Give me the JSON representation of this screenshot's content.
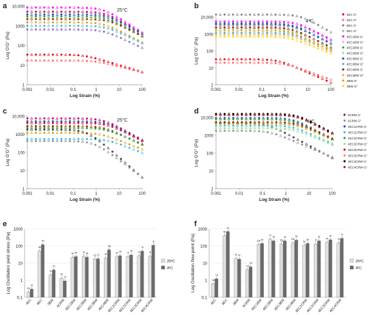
{
  "chart_data": [
    {
      "panel": "a",
      "type": "scatter",
      "annotation": "25°C",
      "xlabel": "Log Strain (%)",
      "ylabel": "Log G'G'' (Pa)",
      "xscale": "log",
      "yscale": "log",
      "xlim": [
        0.001,
        100
      ],
      "ylim": [
        1,
        10000
      ],
      "x_ticks": [
        "0.001",
        "0.01",
        "0.1",
        "1",
        "10",
        "100"
      ],
      "y_ticks": [
        "1",
        "10",
        "100",
        "1000",
        "10,000"
      ],
      "legend": "none",
      "series": [
        {
          "color": "#ff00ff",
          "plateau": 8500,
          "yield": 2.0,
          "slope": 0.75
        },
        {
          "color": "#cc0066",
          "plateau": 5200,
          "yield": 2.5,
          "slope": 0.7
        },
        {
          "color": "#1f4fbf",
          "plateau": 3800,
          "yield": 3.0,
          "slope": 0.65
        },
        {
          "color": "#2ca02c",
          "plateau": 3000,
          "yield": 3.0,
          "slope": 0.65
        },
        {
          "color": "#8c2d04",
          "plateau": 2200,
          "yield": 3.5,
          "slope": 0.6
        },
        {
          "color": "#d4a017",
          "plateau": 1500,
          "yield": 2.0,
          "slope": 0.6
        },
        {
          "color": "#3fbcd6",
          "plateau": 1000,
          "yield": 2.5,
          "slope": 0.55
        },
        {
          "color": "#9467bd",
          "plateau": 650,
          "yield": 2.0,
          "slope": 0.55
        },
        {
          "color": "#e2001a",
          "plateau": 34,
          "yield": 0.3,
          "slope": 0.35
        },
        {
          "color": "#ff6666",
          "plateau": 17,
          "yield": 1.0,
          "slope": 0.3
        }
      ]
    },
    {
      "panel": "b",
      "type": "scatter",
      "annotation": "4°C",
      "xlabel": "Log Strain (%)",
      "ylabel": "Log G'G'' (Pa)",
      "xscale": "log",
      "yscale": "log",
      "xlim": [
        0.001,
        100
      ],
      "ylim": [
        1,
        10000
      ],
      "x_ticks": [
        "0.001",
        "0.01",
        "0.1",
        "1",
        "10",
        "100"
      ],
      "y_ticks": [
        "1",
        "10",
        "100",
        "1000",
        "10,000"
      ],
      "legend": "right",
      "series": [
        {
          "name": "4EC G'",
          "color": "#e2001a",
          "plateau": 32,
          "yield": 0.5,
          "slope": 0.6
        },
        {
          "name": "4EC G''",
          "color": "#ff6666",
          "plateau": 20,
          "yield": 1.0,
          "slope": 0.5
        },
        {
          "name": "8EC G'",
          "color": "#808080",
          "plateau": 14000,
          "yield": 5.0,
          "slope": 0.8
        },
        {
          "name": "8EC G''",
          "color": "#b0b0b0",
          "plateau": 3500,
          "yield": 5.0,
          "slope": 0.7
        },
        {
          "name": "4EC1BW G'",
          "color": "#ff00ff",
          "plateau": 5500,
          "yield": 3.0,
          "slope": 0.7
        },
        {
          "name": "4EC1BW G''",
          "color": "#ff99ff",
          "plateau": 2800,
          "yield": 3.0,
          "slope": 0.6
        },
        {
          "name": "4EC2BW G'",
          "color": "#2ca02c",
          "plateau": 3600,
          "yield": 2.5,
          "slope": 0.7
        },
        {
          "name": "4EC2BW G''",
          "color": "#98df8a",
          "plateau": 1700,
          "yield": 2.5,
          "slope": 0.6
        },
        {
          "name": "4EC3BW G'",
          "color": "#1f4fbf",
          "plateau": 4200,
          "yield": 2.0,
          "slope": 0.7
        },
        {
          "name": "4EC3BW G''",
          "color": "#3fbcd6",
          "plateau": 1200,
          "yield": 2.0,
          "slope": 0.6
        },
        {
          "name": "4EC4BW G'",
          "color": "#8c2d04",
          "plateau": 2400,
          "yield": 2.0,
          "slope": 0.7
        },
        {
          "name": "4EC4BW G''",
          "color": "#f4a460",
          "plateau": 950,
          "yield": 2.0,
          "slope": 0.6
        },
        {
          "name": "3BW G'",
          "color": "#d4a017",
          "plateau": 1700,
          "yield": 1.5,
          "slope": 0.65
        },
        {
          "name": "3BW G''",
          "color": "#ffd700",
          "plateau": 700,
          "yield": 1.5,
          "slope": 0.55
        }
      ]
    },
    {
      "panel": "c",
      "type": "scatter",
      "annotation": "25°C",
      "xlabel": "Log Strain (%)",
      "ylabel": "Log G'G'' (Pa)",
      "xscale": "log",
      "yscale": "log",
      "xlim": [
        0.001,
        100
      ],
      "ylim": [
        1,
        10000
      ],
      "x_ticks": [
        "0.001",
        "0.01",
        "0.1",
        "1",
        "10",
        "100"
      ],
      "y_ticks": [
        "1",
        "10",
        "100",
        "1000",
        "10,000"
      ],
      "legend": "none",
      "series": [
        {
          "color": "#cc0066",
          "plateau": 7500,
          "yield": 2.0,
          "slope": 0.7
        },
        {
          "color": "#1f4fbf",
          "plateau": 5200,
          "yield": 3.0,
          "slope": 0.7
        },
        {
          "color": "#e2001a",
          "plateau": 4200,
          "yield": 3.0,
          "slope": 0.65
        },
        {
          "color": "#8c2d04",
          "plateau": 2800,
          "yield": 2.0,
          "slope": 0.6
        },
        {
          "color": "#2ca02c",
          "plateau": 2200,
          "yield": 2.5,
          "slope": 0.55
        },
        {
          "color": "#d4a017",
          "plateau": 1200,
          "yield": 1.5,
          "slope": 0.5
        },
        {
          "color": "#3fbcd6",
          "plateau": 550,
          "yield": 3.0,
          "slope": 0.5
        },
        {
          "color": "#404040",
          "plateau": 1800,
          "yield": 0.4,
          "slope": 1.1
        },
        {
          "color": "#909090",
          "plateau": 420,
          "yield": 0.8,
          "slope": 0.95
        }
      ]
    },
    {
      "panel": "d",
      "type": "scatter",
      "annotation": "4°C",
      "xlabel": "Log Strain (%)",
      "ylabel": "Log G'G'' (Pa)",
      "xscale": "log",
      "yscale": "log",
      "xlim": [
        0.001,
        100
      ],
      "ylim": [
        1,
        10000
      ],
      "x_ticks": [
        "0.001",
        "0.01",
        "0.1",
        "1",
        "10",
        "100"
      ],
      "y_ticks": [
        "1",
        "10",
        "100",
        "1000",
        "10,000"
      ],
      "legend": "right",
      "series": [
        {
          "name": "6CRW G'",
          "color": "#404040",
          "plateau": 5000,
          "yield": 0.15,
          "slope": 0.7
        },
        {
          "name": "6CRW G''",
          "color": "#909090",
          "plateau": 1800,
          "yield": 0.2,
          "slope": 0.55
        },
        {
          "name": "4EC1CRW G'",
          "color": "#1f4fbf",
          "plateau": 9500,
          "yield": 2.0,
          "slope": 0.7
        },
        {
          "name": "4EC1CRW G''",
          "color": "#3fbcd6",
          "plateau": 3500,
          "yield": 2.0,
          "slope": 0.6
        },
        {
          "name": "4EC2CRW G'",
          "color": "#2ca02c",
          "plateau": 8000,
          "yield": 2.0,
          "slope": 0.65
        },
        {
          "name": "4EC2CRW G''",
          "color": "#98df8a",
          "plateau": 2500,
          "yield": 2.0,
          "slope": 0.55
        },
        {
          "name": "4EC3CRW G'",
          "color": "#e2001a",
          "plateau": 14000,
          "yield": 3.0,
          "slope": 0.7
        },
        {
          "name": "4EC3CRW G''",
          "color": "#d4a017",
          "plateau": 4500,
          "yield": 3.0,
          "slope": 0.6
        },
        {
          "name": "4EC4CRW G'",
          "color": "#000000",
          "plateau": 16000,
          "yield": 3.0,
          "slope": 0.7
        },
        {
          "name": "4EC4CRW G''",
          "color": "#8c2d04",
          "plateau": 5500,
          "yield": 3.0,
          "slope": 0.6
        }
      ]
    },
    {
      "panel": "e",
      "type": "bar",
      "ylabel": "Log Oscillation yield stress (Pa)",
      "yscale": "log",
      "ylim": [
        0.1,
        1000
      ],
      "y_ticks": [
        "0.1",
        "1",
        "10",
        "100",
        "1000"
      ],
      "categories": [
        "4EC",
        "8EC",
        "3BW",
        "6CRW",
        "4EC1BW",
        "4EC2BW",
        "4EC3BW",
        "4EC4BW",
        "4EC1CRW",
        "4EC2CRW",
        "4EC3CRW",
        "4EC4CRW"
      ],
      "legend": "right",
      "series": [
        {
          "name": "25ºC",
          "color": "#e2e2e2",
          "values": [
            0.2,
            50,
            2,
            1.3,
            22,
            25,
            17,
            20,
            23,
            24,
            26,
            25
          ],
          "labels": [
            "2a",
            "4b",
            "2c",
            "2d",
            "4e",
            "3f",
            "1g",
            "4e",
            "4h",
            "4i",
            "4i",
            "4f"
          ]
        },
        {
          "name": "4ºC",
          "color": "#6b6b6b",
          "values": [
            0.3,
            120,
            4,
            0.9,
            24,
            22,
            18,
            60,
            27,
            30,
            50,
            110
          ],
          "labels": [
            "1a",
            "4a",
            "2c",
            "1d",
            "4e",
            "3e",
            "1f",
            "4g",
            "4h",
            "4h",
            "4i",
            "4j"
          ]
        }
      ]
    },
    {
      "panel": "f",
      "type": "bar",
      "ylabel": "Log Oscillation flow point (Pa)",
      "yscale": "log",
      "ylim": [
        0.1,
        1000
      ],
      "y_ticks": [
        "0.1",
        "1",
        "10",
        "100",
        "1000"
      ],
      "categories": [
        "4EC",
        "8EC",
        "3BW",
        "6CRW",
        "4EC1BW",
        "4EC2BW",
        "4EC3BW",
        "4EC4BW",
        "4EC1CRW",
        "4EC2CRW",
        "4EC3CRW",
        "4EC4CRW"
      ],
      "legend": "right",
      "series": [
        {
          "name": "25ºC",
          "color": "#e2e2e2",
          "values": [
            0.6,
            400,
            18,
            4,
            120,
            250,
            130,
            150,
            110,
            130,
            160,
            150
          ],
          "labels": [
            "1a",
            "4b",
            "3c",
            "1d",
            "10e",
            "1f",
            "8g",
            "12e",
            "3e",
            "1f",
            "4h",
            "4i"
          ]
        },
        {
          "name": "4ºC",
          "color": "#6b6b6b",
          "values": [
            1.2,
            700,
            17,
            6,
            140,
            200,
            200,
            220,
            140,
            200,
            230,
            280
          ],
          "labels": [
            "1a",
            "1a",
            "3c",
            "1d",
            "4e",
            "5f",
            "4f",
            "2e",
            "3e",
            "6f",
            "4h",
            "4i"
          ]
        }
      ]
    }
  ]
}
